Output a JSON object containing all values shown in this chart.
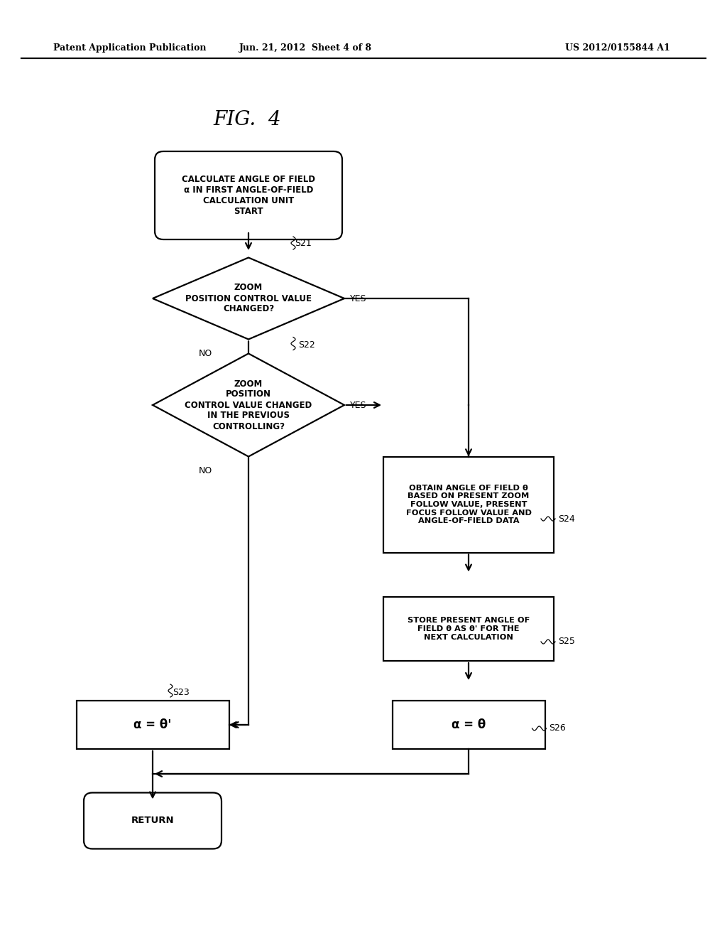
{
  "bg_color": "#ffffff",
  "header_left": "Patent Application Publication",
  "header_center": "Jun. 21, 2012  Sheet 4 of 8",
  "header_right": "US 2012/0155844 A1",
  "fig_title": "FIG.  4",
  "lw": 1.6
}
